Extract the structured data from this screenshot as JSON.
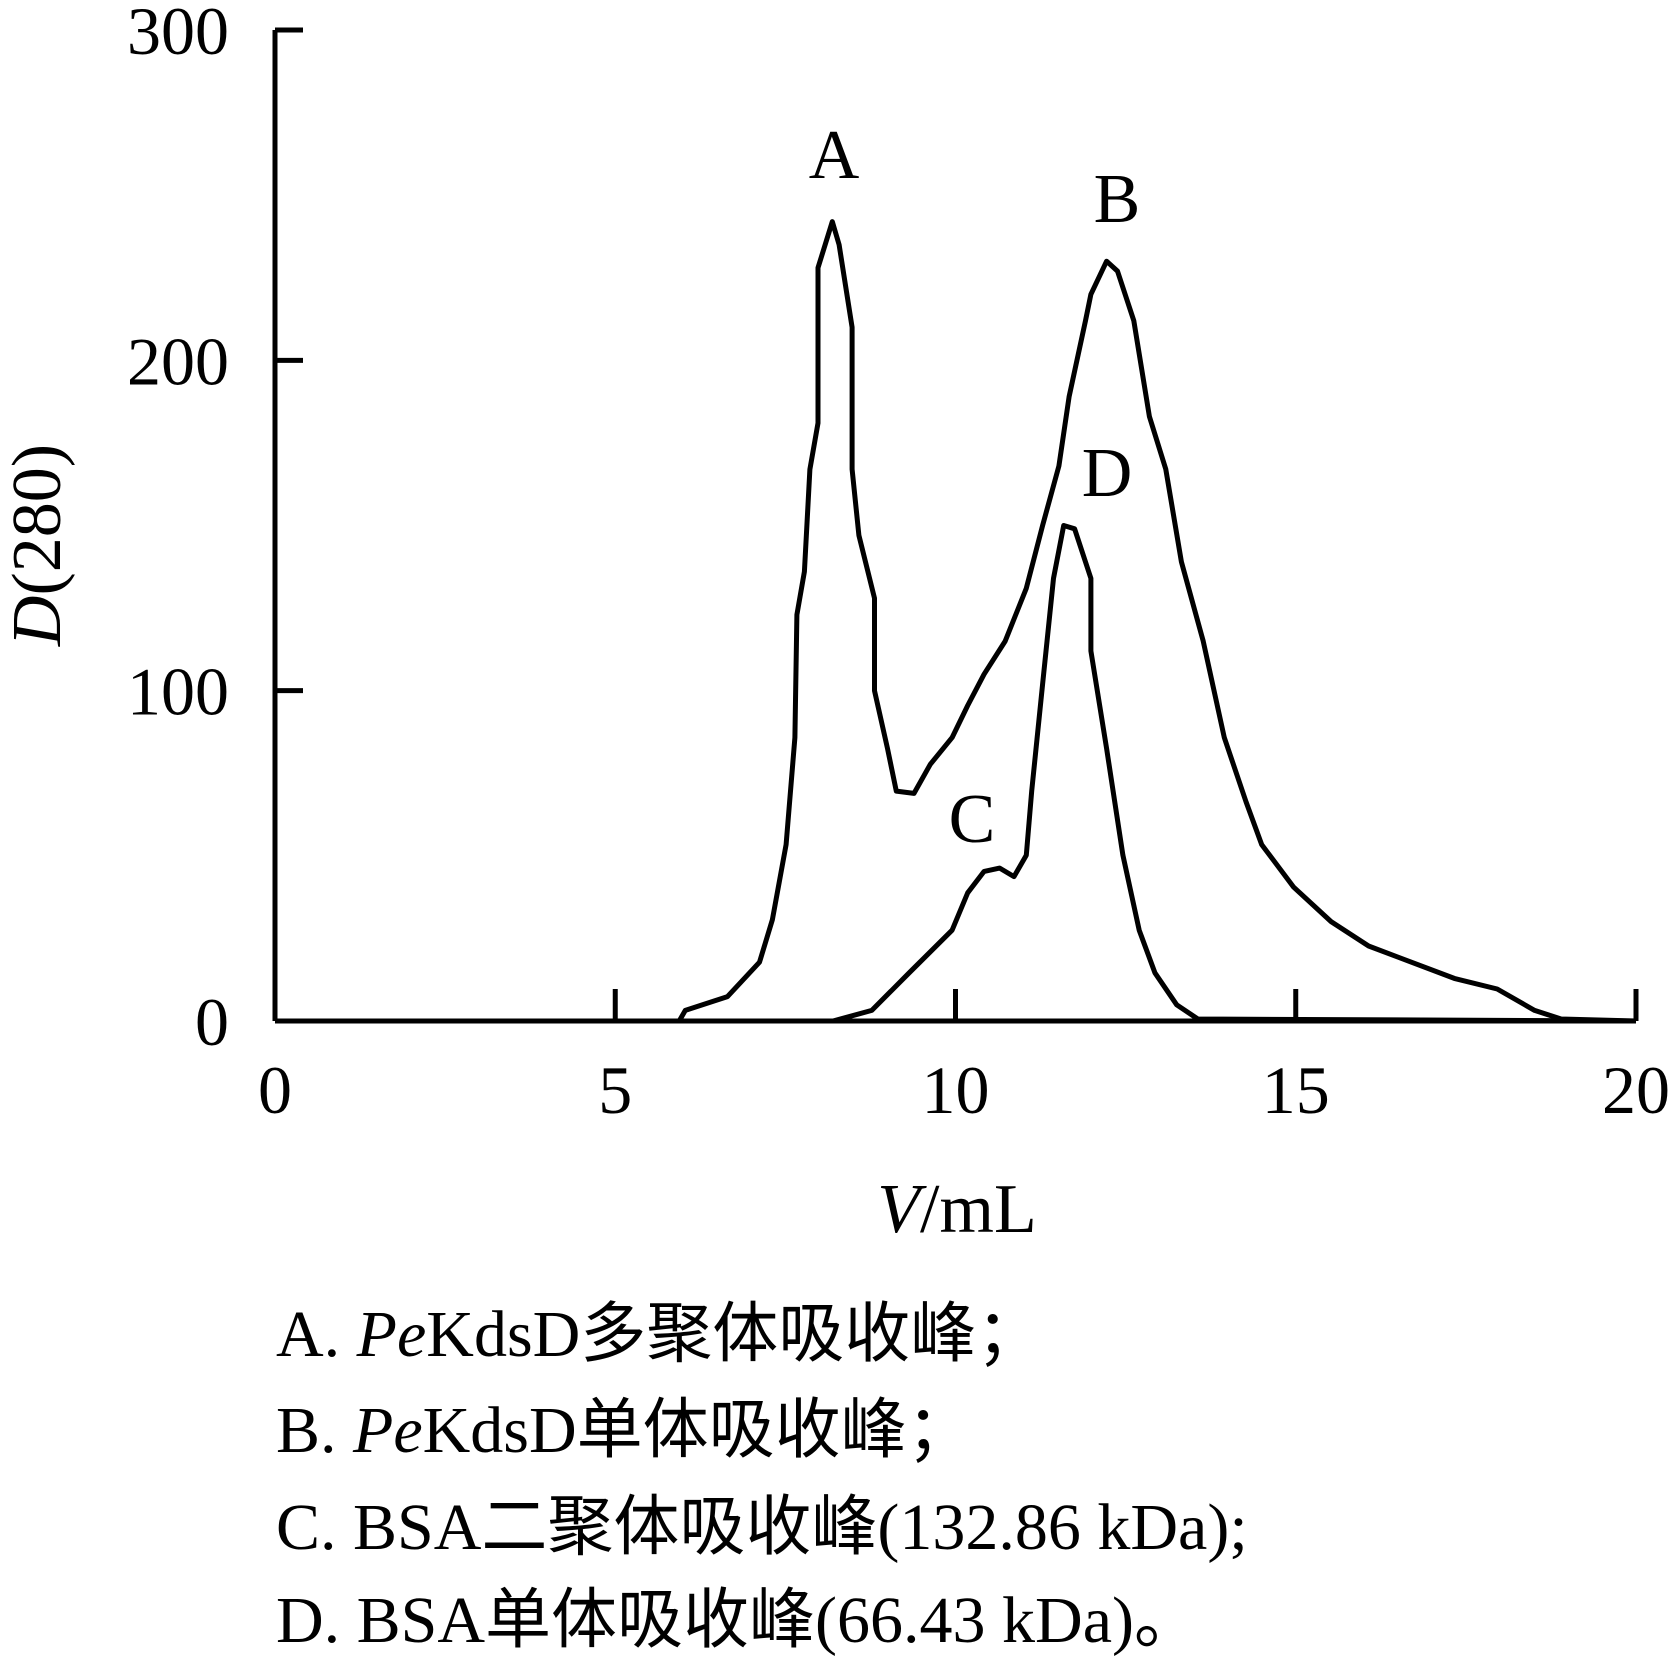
{
  "chart_data": {
    "type": "line",
    "xlabel": [
      "V",
      "/mL"
    ],
    "ylabel": [
      "D",
      "(280)"
    ],
    "xlim": [
      0,
      20
    ],
    "ylim": [
      0,
      300
    ],
    "xticks": [
      0,
      5,
      10,
      15,
      20
    ],
    "yticks": [
      0,
      100,
      200,
      300
    ],
    "annotations": [
      "A",
      "B",
      "C",
      "D"
    ],
    "series": [
      {
        "color": "#000000",
        "x": [
          0,
          5.94,
          6.03,
          6.65,
          7.12,
          7.31,
          7.51,
          7.64,
          7.67,
          7.78,
          7.86,
          7.98,
          7.98,
          8.19,
          8.29,
          8.48,
          8.48,
          8.58,
          8.81,
          8.81,
          9.0,
          9.13,
          9.39,
          9.63,
          9.95,
          10.18,
          10.42,
          10.73,
          11.04,
          11.28,
          11.52,
          11.67,
          11.91,
          11.99,
          12.22,
          12.38,
          12.62,
          12.85,
          13.09,
          13.32,
          13.64,
          13.95,
          14.27,
          14.5,
          14.97,
          15.52,
          16.07,
          16.7,
          17.33,
          17.96,
          18.51,
          18.9,
          20
        ],
        "values": [
          0,
          0,
          3.2,
          7.4,
          17.8,
          30.7,
          53.4,
          85.8,
          123,
          136,
          167,
          181,
          228,
          242,
          235,
          210,
          167,
          147,
          128,
          100,
          82.5,
          69.6,
          68.9,
          77.7,
          85.8,
          95.5,
          105,
          115,
          131,
          150,
          168,
          189,
          212,
          220,
          230,
          227,
          212,
          183,
          167,
          139,
          115,
          85.8,
          66.3,
          53.4,
          40.5,
          30.1,
          22.7,
          17.8,
          12.9,
          9.7,
          3.2,
          0.6,
          0
        ]
      },
      {
        "color": "#000000",
        "x": [
          0,
          8.2,
          8.77,
          9.32,
          9.95,
          10.18,
          10.42,
          10.65,
          10.86,
          11.04,
          11.12,
          11.28,
          11.44,
          11.59,
          11.75,
          11.99,
          11.99,
          12.22,
          12.46,
          12.7,
          12.93,
          13.25,
          13.56,
          20
        ],
        "values": [
          0,
          0,
          3.2,
          14.6,
          27.5,
          38.8,
          45.3,
          46.3,
          43.7,
          50.2,
          69.6,
          102,
          134,
          150,
          149,
          134,
          112,
          82.5,
          50.2,
          27.5,
          14.6,
          4.9,
          0.6,
          0
        ]
      }
    ],
    "notes": [
      [
        "A. ",
        "Pe",
        "KdsD多聚体吸收峰；"
      ],
      [
        "B. ",
        "Pe",
        "KdsD单体吸收峰；"
      ],
      [
        "C. BSA二聚体吸收峰(132.86 kDa);"
      ],
      [
        "D. BSA单体吸收峰(66.43 kDa)。"
      ]
    ]
  }
}
